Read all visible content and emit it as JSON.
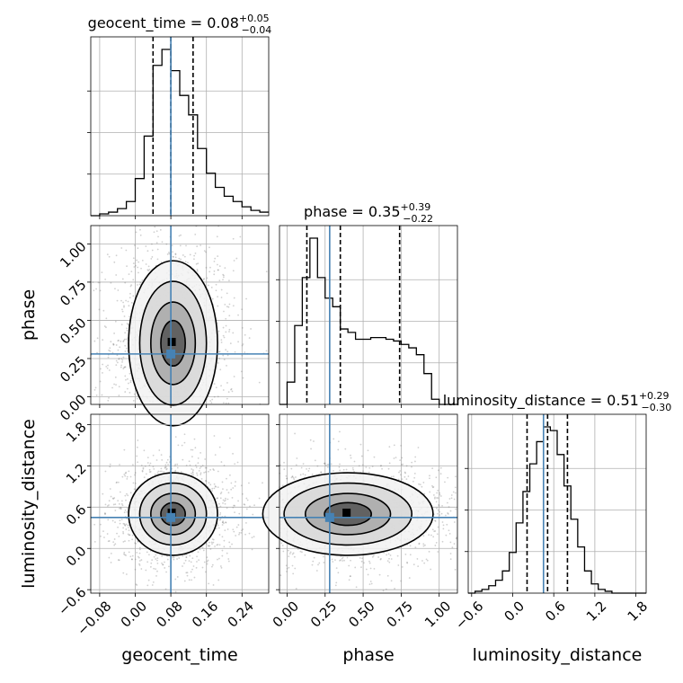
{
  "chart_data": {
    "type": "corner",
    "parameters": [
      "geocent_time",
      "phase",
      "luminosity_distance"
    ],
    "axis_labels": {
      "geocent_time": "geocent_time",
      "phase": "phase",
      "luminosity_distance": "luminosity_distance"
    },
    "ranges": {
      "geocent_time": [
        -0.1,
        0.3
      ],
      "phase": [
        -0.05,
        1.12
      ],
      "luminosity_distance": [
        -0.65,
        1.95
      ]
    },
    "ticks": {
      "geocent_time": {
        "values": [
          -0.08,
          0.0,
          0.08,
          0.16,
          0.24
        ],
        "labels": [
          "−0.08",
          "0.00",
          "0.08",
          "0.16",
          "0.24"
        ]
      },
      "phase": {
        "values": [
          0.0,
          0.25,
          0.5,
          0.75,
          1.0
        ],
        "labels": [
          "0.00",
          "0.25",
          "0.50",
          "0.75",
          "1.00"
        ]
      },
      "luminosity_distance": {
        "values": [
          -0.6,
          0.0,
          0.6,
          1.2,
          1.8
        ],
        "labels": [
          "−0.6",
          "0.0",
          "0.6",
          "1.2",
          "1.8"
        ]
      }
    },
    "titles": {
      "geocent_time": {
        "prefix": "geocent_time = 0.08",
        "upper": "+0.05",
        "lower": "−0.04"
      },
      "phase": {
        "prefix": "phase = 0.35",
        "upper": "+0.39",
        "lower": "−0.22"
      },
      "luminosity_distance": {
        "prefix": "luminosity_distance = 0.51",
        "upper": "+0.29",
        "lower": "−0.30"
      }
    },
    "quantiles": {
      "geocent_time": [
        0.04,
        0.08,
        0.13
      ],
      "phase": [
        0.13,
        0.35,
        0.74
      ],
      "luminosity_distance": [
        0.21,
        0.51,
        0.8
      ]
    },
    "truths": {
      "geocent_time": 0.08,
      "phase": 0.28,
      "luminosity_distance": 0.45
    },
    "histograms": {
      "geocent_time": {
        "edges": [
          -0.1,
          -0.08,
          -0.06,
          -0.04,
          -0.02,
          0.0,
          0.02,
          0.04,
          0.06,
          0.08,
          0.1,
          0.12,
          0.14,
          0.16,
          0.18,
          0.2,
          0.22,
          0.24,
          0.26,
          0.28,
          0.3
        ],
        "counts": [
          0.0,
          0.01,
          0.02,
          0.04,
          0.08,
          0.21,
          0.45,
          0.85,
          0.94,
          0.82,
          0.68,
          0.57,
          0.38,
          0.24,
          0.16,
          0.11,
          0.08,
          0.05,
          0.03,
          0.02
        ]
      },
      "phase": {
        "edges": [
          -0.05,
          0.0,
          0.05,
          0.1,
          0.15,
          0.2,
          0.25,
          0.3,
          0.35,
          0.4,
          0.45,
          0.5,
          0.55,
          0.6,
          0.65,
          0.7,
          0.75,
          0.8,
          0.85,
          0.9,
          0.95,
          1.0,
          1.05,
          1.12
        ],
        "counts": [
          0.0,
          0.13,
          0.46,
          0.74,
          0.97,
          0.74,
          0.62,
          0.57,
          0.44,
          0.42,
          0.38,
          0.38,
          0.39,
          0.39,
          0.38,
          0.37,
          0.35,
          0.33,
          0.29,
          0.18,
          0.03,
          0.0,
          0.0
        ]
      },
      "luminosity_distance": {
        "edges": [
          -0.65,
          -0.55,
          -0.45,
          -0.35,
          -0.25,
          -0.15,
          -0.05,
          0.05,
          0.15,
          0.25,
          0.35,
          0.45,
          0.55,
          0.65,
          0.75,
          0.85,
          0.95,
          1.05,
          1.15,
          1.25,
          1.35,
          1.45,
          1.95
        ],
        "counts": [
          0.0,
          0.01,
          0.02,
          0.04,
          0.07,
          0.12,
          0.22,
          0.38,
          0.55,
          0.7,
          0.82,
          0.9,
          0.88,
          0.75,
          0.58,
          0.4,
          0.25,
          0.12,
          0.05,
          0.02,
          0.01,
          0.0
        ]
      }
    },
    "scatter_density": {
      "geocent_time|phase": {
        "x_mean": 0.085,
        "x_sd": 0.05,
        "y_mean": 0.35,
        "y_sd": 0.27
      },
      "geocent_time|luminosity_distance": {
        "x_mean": 0.085,
        "x_sd": 0.05,
        "y_mean": 0.5,
        "y_sd": 0.3
      },
      "phase|luminosity_distance": {
        "x_mean": 0.4,
        "x_sd": 0.28,
        "y_mean": 0.5,
        "y_sd": 0.3
      }
    },
    "grid": true,
    "truth_color": "#4682b4",
    "hist_color": "#000000"
  }
}
